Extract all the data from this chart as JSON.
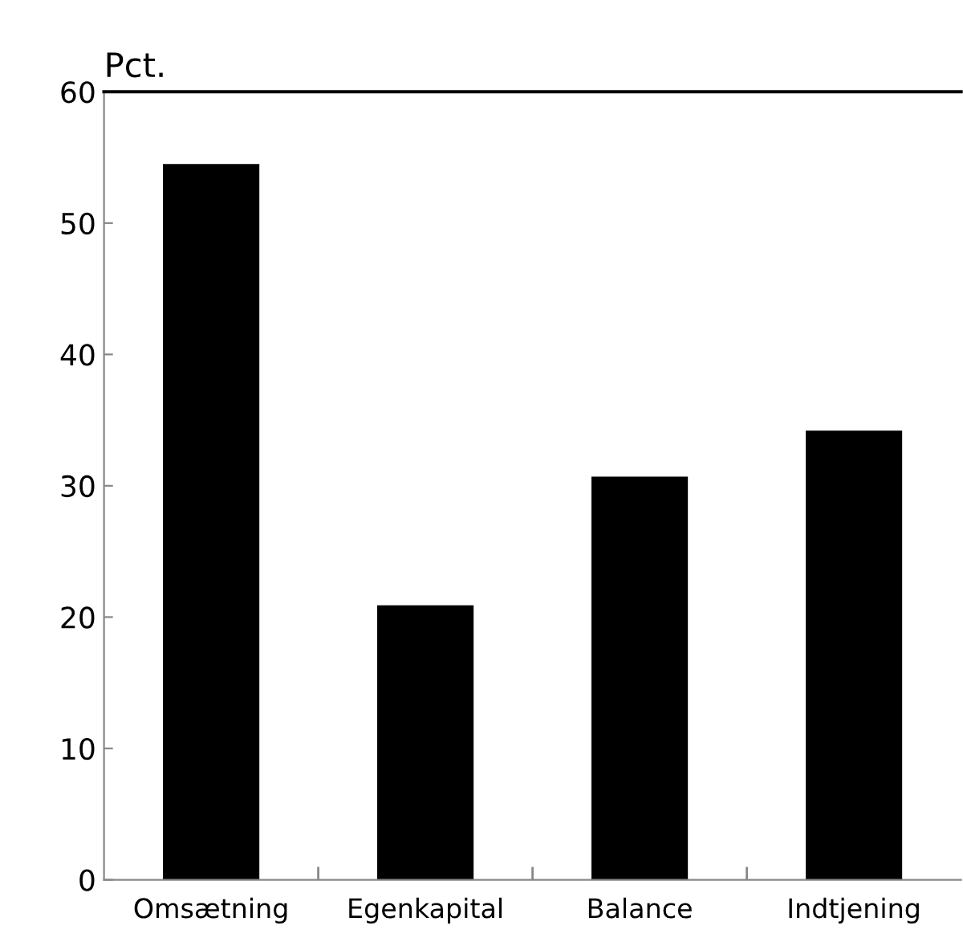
{
  "chart_data": {
    "type": "bar",
    "ylabel": "Pct.",
    "categories": [
      "Omsætning",
      "Egenkapital",
      "Balance",
      "Indtjening"
    ],
    "values": [
      54.5,
      20.9,
      30.7,
      34.2
    ],
    "color": "#000000",
    "ylim": [
      0,
      60
    ],
    "yticks": [
      0,
      10,
      20,
      30,
      40,
      50,
      60
    ],
    "grid": false
  }
}
